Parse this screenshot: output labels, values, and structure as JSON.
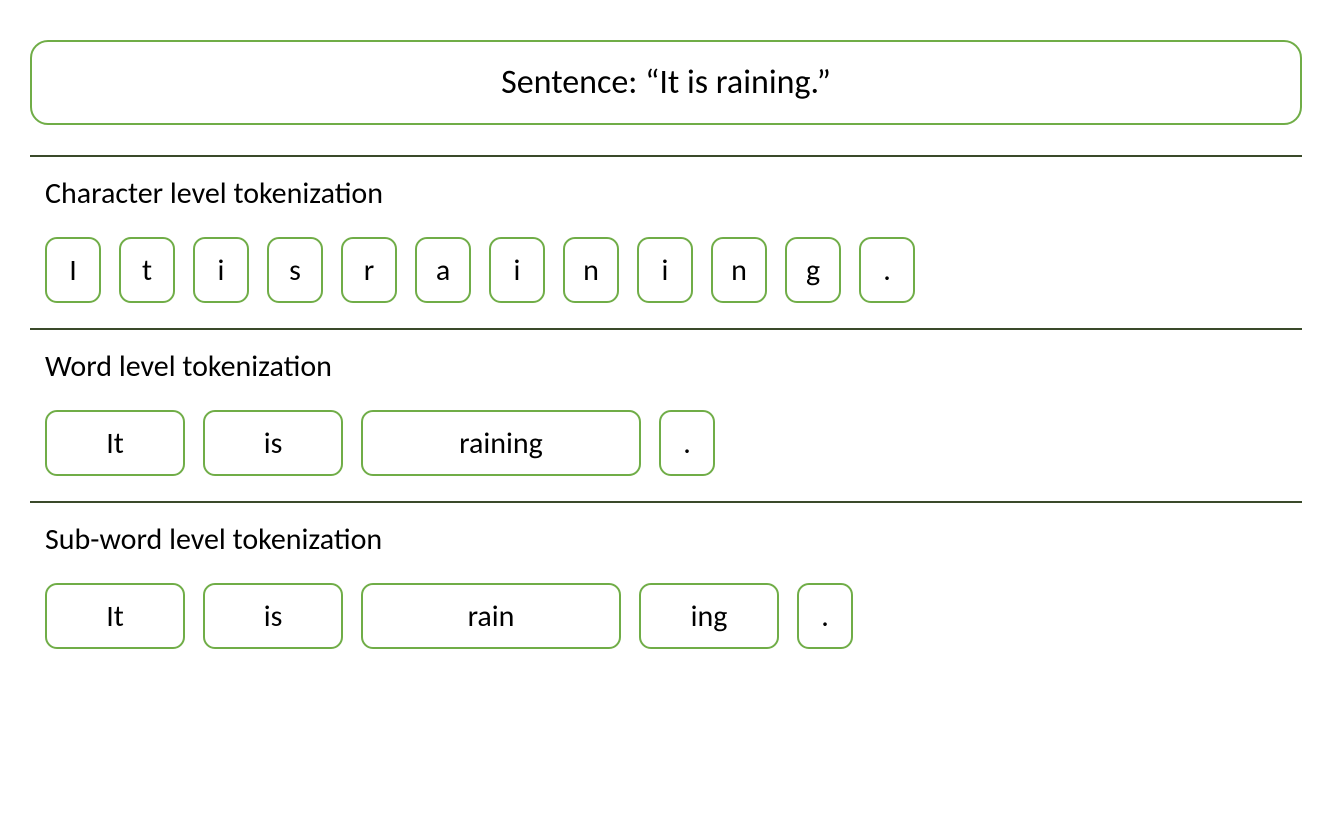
{
  "sentence": {
    "label": "Sentence: “It is raining.”"
  },
  "sections": {
    "char": {
      "title": "Character level tokenization",
      "tokens": [
        "I",
        "t",
        "i",
        "s",
        "r",
        "a",
        "i",
        "n",
        "i",
        "n",
        "g",
        "."
      ]
    },
    "word": {
      "title": "Word level tokenization",
      "tokens": [
        "It",
        "is",
        "raining",
        "."
      ]
    },
    "subword": {
      "title": "Sub-word level tokenization",
      "tokens": [
        "It",
        "is",
        "rain",
        "ing",
        "."
      ]
    }
  },
  "styling": {
    "border_color": "#70ad47",
    "divider_color": "#3a4a2a",
    "text_color": "#000000",
    "background_color": "#ffffff",
    "border_radius": 12,
    "sentence_border_radius": 18,
    "token_height": 66,
    "title_fontsize": 30,
    "sentence_fontsize": 34,
    "token_fontsize": 30,
    "char_token_width": 56,
    "word_token_widths": [
      140,
      140,
      280,
      56
    ],
    "subword_token_widths": [
      140,
      140,
      260,
      140,
      56
    ]
  }
}
